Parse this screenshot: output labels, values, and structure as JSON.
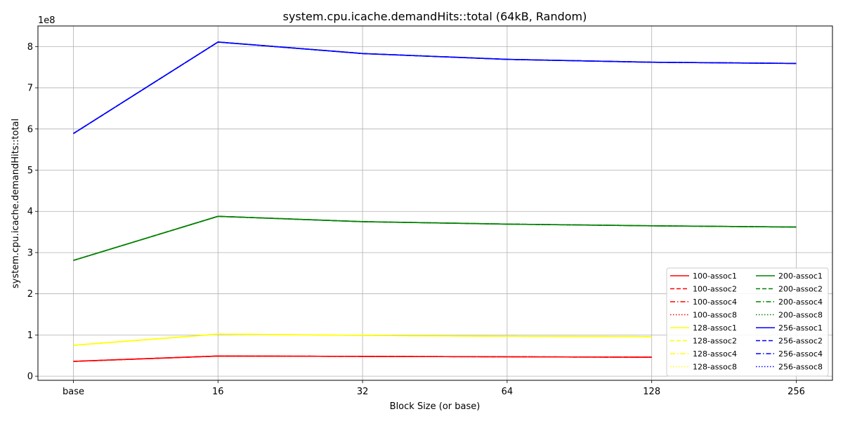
{
  "chart_data": {
    "type": "line",
    "title": "system.cpu.icache.demandHits::total (64kB, Random)",
    "xlabel": "Block Size (or base)",
    "ylabel": "system.cpu.icache.demandHits::total",
    "y_offset_label": "1e8",
    "categories": [
      "base",
      "16",
      "32",
      "64",
      "128",
      "256"
    ],
    "ylim": [
      -0.1,
      8.5
    ],
    "yticks": [
      0,
      1,
      2,
      3,
      4,
      5,
      6,
      7,
      8
    ],
    "grid": true,
    "legend_position": "lower-right",
    "legend_columns": 2,
    "series": [
      {
        "name": "100-assoc1",
        "color": "#ff0000",
        "dash": "solid",
        "values": [
          0.36,
          0.49,
          0.48,
          0.47,
          0.46,
          null
        ]
      },
      {
        "name": "100-assoc2",
        "color": "#ff0000",
        "dash": "dashed",
        "values": [
          0.36,
          0.49,
          0.48,
          0.47,
          0.46,
          null
        ]
      },
      {
        "name": "100-assoc4",
        "color": "#ff0000",
        "dash": "dashdot",
        "values": [
          0.36,
          0.49,
          0.48,
          0.47,
          0.46,
          null
        ]
      },
      {
        "name": "100-assoc8",
        "color": "#ff0000",
        "dash": "dotted",
        "values": [
          0.36,
          0.49,
          0.48,
          0.47,
          0.46,
          null
        ]
      },
      {
        "name": "128-assoc1",
        "color": "#ffff00",
        "dash": "solid",
        "values": [
          0.75,
          1.02,
          0.99,
          0.97,
          0.96,
          null
        ]
      },
      {
        "name": "128-assoc2",
        "color": "#ffff00",
        "dash": "dashed",
        "values": [
          0.75,
          1.02,
          0.99,
          0.97,
          0.96,
          null
        ]
      },
      {
        "name": "128-assoc4",
        "color": "#ffff00",
        "dash": "dashdot",
        "values": [
          0.75,
          1.02,
          0.99,
          0.97,
          0.96,
          null
        ]
      },
      {
        "name": "128-assoc8",
        "color": "#ffff00",
        "dash": "dotted",
        "values": [
          0.75,
          1.02,
          0.99,
          0.97,
          0.96,
          null
        ]
      },
      {
        "name": "200-assoc1",
        "color": "#008000",
        "dash": "solid",
        "values": [
          2.81,
          3.88,
          3.75,
          3.69,
          3.65,
          3.62
        ]
      },
      {
        "name": "200-assoc2",
        "color": "#008000",
        "dash": "dashed",
        "values": [
          2.81,
          3.88,
          3.75,
          3.69,
          3.65,
          3.62
        ]
      },
      {
        "name": "200-assoc4",
        "color": "#008000",
        "dash": "dashdot",
        "values": [
          2.81,
          3.88,
          3.75,
          3.69,
          3.65,
          3.62
        ]
      },
      {
        "name": "200-assoc8",
        "color": "#008000",
        "dash": "dotted",
        "values": [
          2.81,
          3.88,
          3.75,
          3.69,
          3.65,
          3.62
        ]
      },
      {
        "name": "256-assoc1",
        "color": "#0000ff",
        "dash": "solid",
        "values": [
          5.89,
          8.11,
          7.83,
          7.69,
          7.62,
          7.59
        ]
      },
      {
        "name": "256-assoc2",
        "color": "#0000ff",
        "dash": "dashed",
        "values": [
          5.89,
          8.11,
          7.83,
          7.69,
          7.62,
          7.59
        ]
      },
      {
        "name": "256-assoc4",
        "color": "#0000ff",
        "dash": "dashdot",
        "values": [
          5.89,
          8.11,
          7.83,
          7.69,
          7.62,
          7.59
        ]
      },
      {
        "name": "256-assoc8",
        "color": "#0000ff",
        "dash": "dotted",
        "values": [
          5.89,
          8.11,
          7.83,
          7.69,
          7.62,
          7.59
        ]
      }
    ]
  }
}
